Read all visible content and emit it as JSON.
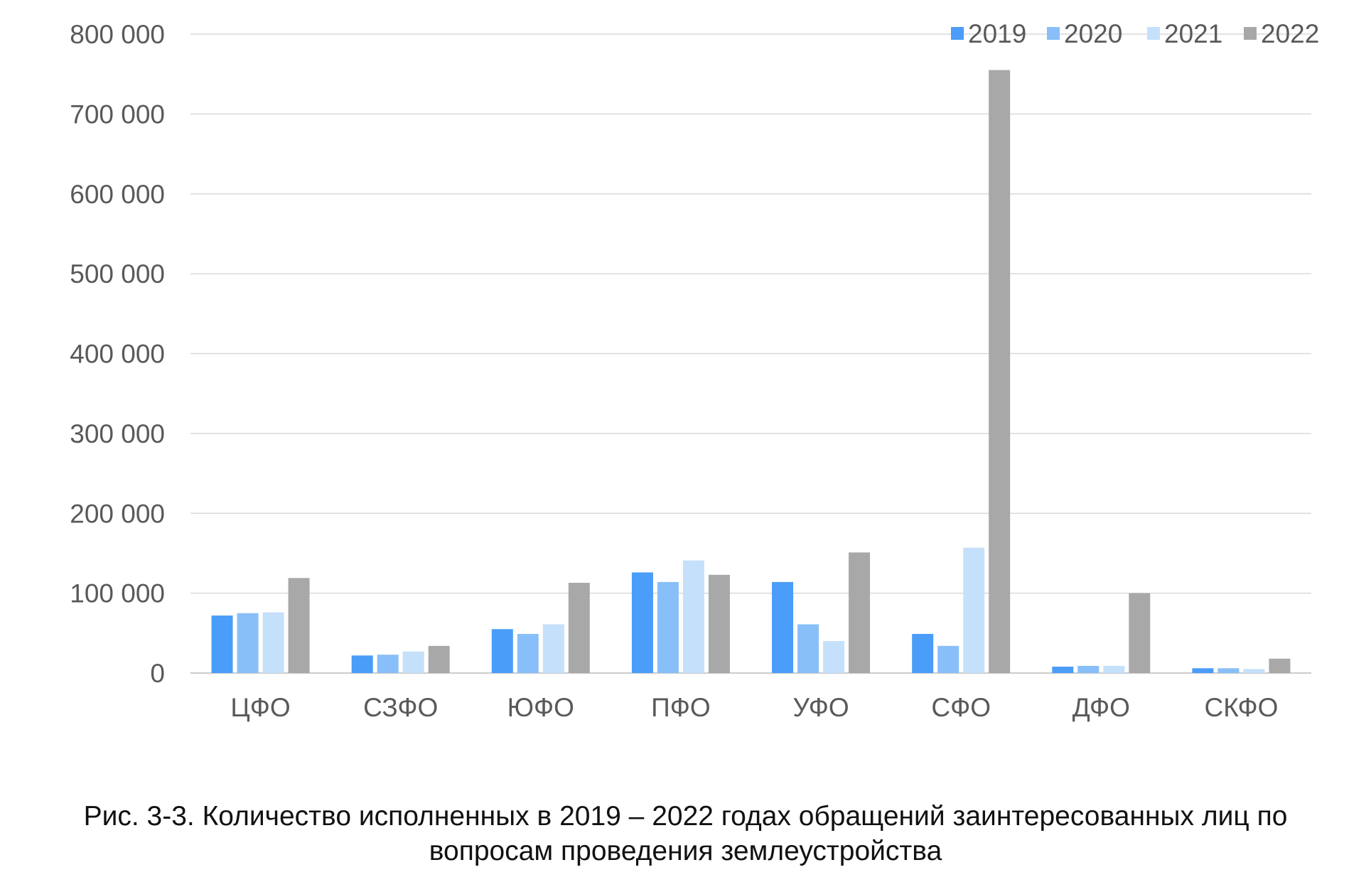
{
  "chart_data": {
    "type": "bar",
    "categories": [
      "ЦФО",
      "СЗФО",
      "ЮФО",
      "ПФО",
      "УФО",
      "СФО",
      "ДФО",
      "СКФО"
    ],
    "series": [
      {
        "name": "2019",
        "color": "#4a9df8",
        "values": [
          72000,
          22000,
          55000,
          126000,
          114000,
          49000,
          8000,
          6000
        ]
      },
      {
        "name": "2020",
        "color": "#88bff8",
        "values": [
          75000,
          23000,
          49000,
          114000,
          61000,
          34000,
          9000,
          6000
        ]
      },
      {
        "name": "2021",
        "color": "#c5e0fb",
        "values": [
          76000,
          27000,
          61000,
          141000,
          40000,
          157000,
          9000,
          5000
        ]
      },
      {
        "name": "2022",
        "color": "#a8a8a8",
        "values": [
          119000,
          34000,
          113000,
          123000,
          151000,
          755000,
          100000,
          18000
        ]
      }
    ],
    "yticks": [
      "0",
      "100 000",
      "200 000",
      "300 000",
      "400 000",
      "500 000",
      "600 000",
      "700 000",
      "800 000"
    ],
    "ylim": [
      0,
      800000
    ],
    "grid": true,
    "legend_position": "top-right"
  },
  "caption": {
    "line1": "Рис. 3-3. Количество исполненных в 2019 – 2022 годах обращений заинтересованных лиц по",
    "line2": "вопросам проведения землеустройства"
  }
}
